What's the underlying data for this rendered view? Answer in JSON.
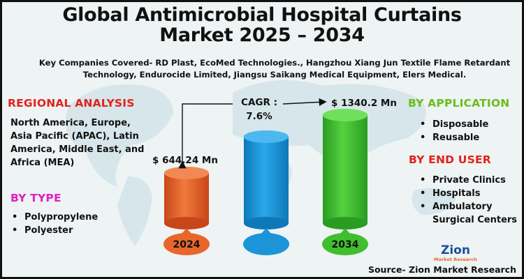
{
  "title_line1": "Global Antimicrobial Hospital Curtains",
  "title_line2": "Market 2025 – 2034",
  "companies": "Key Companies Covered- RD Plast, EcoMed Technologies., Hangzhou Xiang Jun Textile Flame Retardant Technology, Endurocide Limited, Jiangsu Saikang Medical Equipment, Elers Medical.",
  "regional": {
    "heading": "REGIONAL ANALYSIS",
    "text": "North America, Europe, Asia Pacific (APAC), Latin America, Middle East, and Africa (MEA)"
  },
  "by_type": {
    "heading": "BY TYPE",
    "items": [
      "Polypropylene",
      "Polyester"
    ]
  },
  "by_application": {
    "heading": "BY APPLICATION",
    "items": [
      "Disposable",
      "Reusable"
    ]
  },
  "by_end_user": {
    "heading": "BY END USER",
    "items": [
      "Private Clinics",
      "Hospitals",
      "Ambulatory Surgical Centers"
    ]
  },
  "cagr": {
    "label": "CAGR :",
    "value": "7.6%"
  },
  "logo": {
    "name": "Zion",
    "sub": "Market Research"
  },
  "source": "Source- Zion Market Research",
  "colors": {
    "bar_2024": "#e8652c",
    "bar_mid": "#1b95d8",
    "bar_2034": "#3fbf2e",
    "red_heading": "#e0231c",
    "green_heading": "#6bbd1e",
    "magenta_heading": "#e21fc4"
  },
  "chart_data": {
    "type": "bar",
    "categories": [
      "2024",
      "",
      "2034"
    ],
    "values": [
      644.24,
      null,
      1340.2
    ],
    "value_labels": [
      "$ 644.24 Mn",
      "",
      "$ 1340.2 Mn"
    ],
    "title": "Global Antimicrobial Hospital Curtains Market 2025 – 2034",
    "xlabel": "",
    "ylabel": "",
    "annotation": "CAGR : 7.6%"
  }
}
